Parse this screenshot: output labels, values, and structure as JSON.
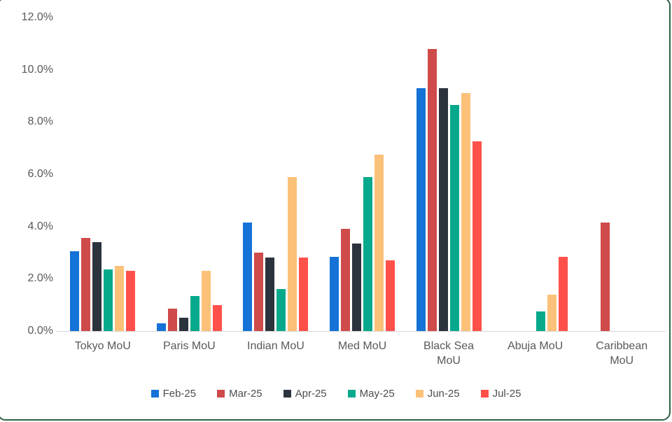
{
  "chart_data": {
    "type": "bar",
    "title": "",
    "xlabel": "",
    "ylabel": "",
    "grid": false,
    "legend_position": "bottom",
    "ylim": [
      0,
      12
    ],
    "ytick_step": 2,
    "ytick_labels": [
      "0.0%",
      "2.0%",
      "4.0%",
      "6.0%",
      "8.0%",
      "10.0%",
      "12.0%"
    ],
    "categories": [
      "Tokyo MoU",
      "Paris MoU",
      "Indian MoU",
      "Med MoU",
      "Black Sea MoU",
      "Abuja MoU",
      "Caribbean MoU"
    ],
    "series": [
      {
        "name": "Feb-25",
        "color": "#1572d6",
        "values": [
          3.05,
          0.3,
          4.15,
          2.85,
          9.3,
          0,
          0
        ]
      },
      {
        "name": "Mar-25",
        "color": "#cf4a4a",
        "values": [
          3.55,
          0.85,
          3.0,
          3.9,
          10.8,
          0,
          4.15
        ]
      },
      {
        "name": "Apr-25",
        "color": "#2b333d",
        "values": [
          3.4,
          0.5,
          2.8,
          3.35,
          9.3,
          0,
          0
        ]
      },
      {
        "name": "May-25",
        "color": "#06a98b",
        "values": [
          2.35,
          1.35,
          1.6,
          5.9,
          8.65,
          0.75,
          0
        ]
      },
      {
        "name": "Jun-25",
        "color": "#fcc178",
        "values": [
          2.5,
          2.3,
          5.9,
          6.75,
          9.1,
          1.4,
          0
        ]
      },
      {
        "name": "Jul-25",
        "color": "#ff5149",
        "values": [
          2.3,
          1.0,
          2.8,
          2.7,
          7.25,
          2.85,
          0
        ]
      }
    ]
  },
  "style_colors": {
    "card_border": "#2f5f44",
    "axis_text": "#595959",
    "axis_line": "#d6d6d6",
    "background": "#ffffff"
  }
}
